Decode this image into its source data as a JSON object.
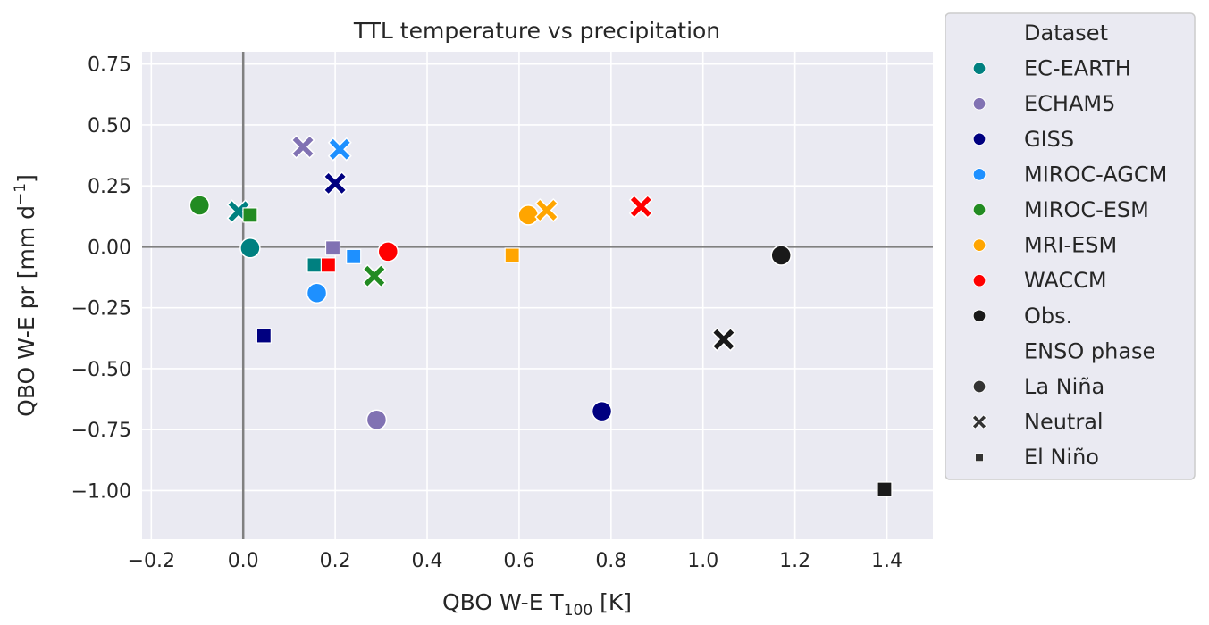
{
  "chart_data": {
    "type": "scatter",
    "title": "TTL temperature vs precipitation",
    "xlabel": {
      "main": "QBO W-E T",
      "sub": "100",
      "unit": " [K]"
    },
    "ylabel": {
      "main": "QBO W-E pr [mm d",
      "sup": "−1",
      "end": "]"
    },
    "xlim": [
      -0.22,
      1.5
    ],
    "ylim": [
      -1.2,
      0.8
    ],
    "xticks": [
      -0.2,
      0.0,
      0.2,
      0.4,
      0.6,
      0.8,
      1.0,
      1.2,
      1.4
    ],
    "yticks": [
      0.75,
      0.5,
      0.25,
      0.0,
      -0.25,
      -0.5,
      -0.75,
      -1.0
    ],
    "xtick_labels": [
      "−0.2",
      "0.0",
      "0.2",
      "0.4",
      "0.6",
      "0.8",
      "1.0",
      "1.2",
      "1.4"
    ],
    "ytick_labels": [
      "0.75",
      "0.50",
      "0.25",
      "0.00",
      "−0.25",
      "−0.50",
      "−0.75",
      "−1.00"
    ],
    "grid": true,
    "reference_lines": {
      "x": 0,
      "y": 0
    },
    "legend_position": "outside-right",
    "legend": {
      "hue_title": "Dataset",
      "datasets": [
        {
          "name": "EC-EARTH",
          "color": "#008080"
        },
        {
          "name": "ECHAM5",
          "color": "#8172b3"
        },
        {
          "name": "GISS",
          "color": "#000080"
        },
        {
          "name": "MIROC-AGCM",
          "color": "#1e90ff"
        },
        {
          "name": "MIROC-ESM",
          "color": "#228b22"
        },
        {
          "name": "MRI-ESM",
          "color": "#ffa500"
        },
        {
          "name": "WACCM",
          "color": "#ff0000"
        },
        {
          "name": "Obs.",
          "color": "#1a1a1a"
        }
      ],
      "style_title": "ENSO phase",
      "phases": [
        {
          "name": "La Niña",
          "marker": "circle"
        },
        {
          "name": "Neutral",
          "marker": "x"
        },
        {
          "name": "El Niño",
          "marker": "square"
        }
      ]
    },
    "points": [
      {
        "dataset": "EC-EARTH",
        "phase": "La Niña",
        "x": 0.015,
        "y": -0.005
      },
      {
        "dataset": "EC-EARTH",
        "phase": "Neutral",
        "x": -0.01,
        "y": 0.145
      },
      {
        "dataset": "EC-EARTH",
        "phase": "El Niño",
        "x": 0.155,
        "y": -0.075
      },
      {
        "dataset": "ECHAM5",
        "phase": "La Niña",
        "x": 0.29,
        "y": -0.71
      },
      {
        "dataset": "ECHAM5",
        "phase": "Neutral",
        "x": 0.13,
        "y": 0.41
      },
      {
        "dataset": "ECHAM5",
        "phase": "El Niño",
        "x": 0.195,
        "y": -0.005
      },
      {
        "dataset": "GISS",
        "phase": "La Niña",
        "x": 0.78,
        "y": -0.675
      },
      {
        "dataset": "GISS",
        "phase": "Neutral",
        "x": 0.2,
        "y": 0.26
      },
      {
        "dataset": "GISS",
        "phase": "El Niño",
        "x": 0.045,
        "y": -0.365
      },
      {
        "dataset": "MIROC-AGCM",
        "phase": "La Niña",
        "x": 0.16,
        "y": -0.19
      },
      {
        "dataset": "MIROC-AGCM",
        "phase": "Neutral",
        "x": 0.21,
        "y": 0.4
      },
      {
        "dataset": "MIROC-AGCM",
        "phase": "El Niño",
        "x": 0.24,
        "y": -0.04
      },
      {
        "dataset": "MIROC-ESM",
        "phase": "La Niña",
        "x": -0.095,
        "y": 0.17
      },
      {
        "dataset": "MIROC-ESM",
        "phase": "Neutral",
        "x": 0.285,
        "y": -0.12
      },
      {
        "dataset": "MIROC-ESM",
        "phase": "El Niño",
        "x": 0.015,
        "y": 0.13
      },
      {
        "dataset": "MRI-ESM",
        "phase": "La Niña",
        "x": 0.62,
        "y": 0.13
      },
      {
        "dataset": "MRI-ESM",
        "phase": "Neutral",
        "x": 0.66,
        "y": 0.15
      },
      {
        "dataset": "MRI-ESM",
        "phase": "El Niño",
        "x": 0.585,
        "y": -0.035
      },
      {
        "dataset": "WACCM",
        "phase": "La Niña",
        "x": 0.315,
        "y": -0.02
      },
      {
        "dataset": "WACCM",
        "phase": "Neutral",
        "x": 0.865,
        "y": 0.165
      },
      {
        "dataset": "WACCM",
        "phase": "El Niño",
        "x": 0.185,
        "y": -0.075
      },
      {
        "dataset": "Obs.",
        "phase": "La Niña",
        "x": 1.17,
        "y": -0.035
      },
      {
        "dataset": "Obs.",
        "phase": "Neutral",
        "x": 1.045,
        "y": -0.38
      },
      {
        "dataset": "Obs.",
        "phase": "El Niño",
        "x": 1.395,
        "y": -0.995
      }
    ]
  }
}
